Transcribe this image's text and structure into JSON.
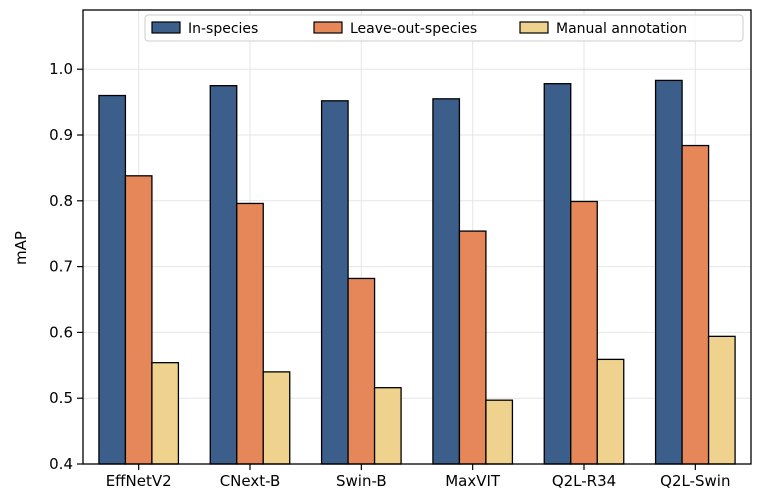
{
  "chart_data": {
    "type": "bar",
    "title": "",
    "xlabel": "",
    "ylabel": "mAP",
    "ylim": [
      0.4,
      1.09
    ],
    "yticks": [
      "0.4",
      "0.5",
      "0.6",
      "0.7",
      "0.8",
      "0.9",
      "1.0"
    ],
    "grid": true,
    "legend_position": "top-right",
    "categories": [
      "EffNetV2",
      "CNext-B",
      "Swin-B",
      "MaxVIT",
      "Q2L-R34",
      "Q2L-Swin"
    ],
    "series": [
      {
        "name": "In-species",
        "color": "#3b5f8a",
        "values": [
          0.96,
          0.975,
          0.952,
          0.955,
          0.978,
          0.983
        ]
      },
      {
        "name": "Leave-out-species",
        "color": "#e68759",
        "values": [
          0.838,
          0.796,
          0.682,
          0.754,
          0.799,
          0.884
        ]
      },
      {
        "name": "Manual annotation",
        "color": "#efd28d",
        "values": [
          0.554,
          0.54,
          0.516,
          0.497,
          0.559,
          0.594
        ]
      }
    ]
  }
}
